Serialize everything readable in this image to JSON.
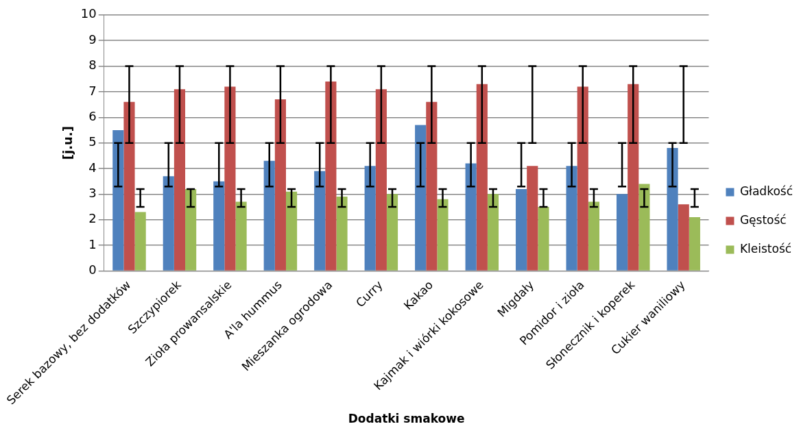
{
  "chart_data": {
    "type": "bar",
    "xlabel": "Dodatki smakowe",
    "ylabel": "[j.u.]",
    "categories": [
      "Serek bazowy, bez dodatków",
      "Szczypiorek",
      "Zioła prowansalskie",
      "A'la hummus",
      "Mieszanka ogrodowa",
      "Curry",
      "Kakao",
      "Kajmak i wiórki kokosowe",
      "Migdały",
      "Pomidor i zioła",
      "Słonecznik i koperek",
      "Cukier waniliowy"
    ],
    "series": [
      {
        "name": "Gładkość",
        "color": "#4f81bd",
        "values": [
          5.5,
          3.7,
          3.5,
          4.3,
          3.9,
          4.1,
          5.7,
          4.2,
          3.2,
          4.1,
          3.0,
          4.8
        ],
        "errors": [
          [
            3.3,
            5
          ],
          [
            3.3,
            5
          ],
          [
            3.3,
            5
          ],
          [
            3.3,
            5
          ],
          [
            3.3,
            5
          ],
          [
            3.3,
            5
          ],
          [
            3.3,
            5
          ],
          [
            3.3,
            5
          ],
          [
            3.3,
            5
          ],
          [
            3.3,
            5
          ],
          [
            3.3,
            5
          ],
          [
            3.3,
            5
          ]
        ]
      },
      {
        "name": "Gęstość",
        "color": "#c0504d",
        "values": [
          6.6,
          7.1,
          7.2,
          6.7,
          7.4,
          7.1,
          6.6,
          7.3,
          4.1,
          7.2,
          7.3,
          2.6
        ],
        "errors": [
          [
            5,
            8
          ],
          [
            5,
            8
          ],
          [
            5,
            8
          ],
          [
            5,
            8
          ],
          [
            5,
            8
          ],
          [
            5,
            8
          ],
          [
            5,
            8
          ],
          [
            5,
            8
          ],
          [
            5,
            8
          ],
          [
            5,
            8
          ],
          [
            5,
            8
          ],
          [
            5,
            8
          ]
        ]
      },
      {
        "name": "Kleistość",
        "color": "#9bbb59",
        "values": [
          2.3,
          3.2,
          2.7,
          3.1,
          2.9,
          3.0,
          2.8,
          3.0,
          2.5,
          2.7,
          3.4,
          2.1
        ],
        "errors": [
          [
            2.5,
            3.2
          ],
          [
            2.5,
            3.2
          ],
          [
            2.5,
            3.2
          ],
          [
            2.5,
            3.2
          ],
          [
            2.5,
            3.2
          ],
          [
            2.5,
            3.2
          ],
          [
            2.5,
            3.2
          ],
          [
            2.5,
            3.2
          ],
          [
            2.5,
            3.2
          ],
          [
            2.5,
            3.2
          ],
          [
            2.5,
            3.2
          ],
          [
            2.5,
            3.2
          ]
        ]
      }
    ],
    "ylim": [
      0,
      10
    ],
    "yticks": [
      0,
      1,
      2,
      3,
      4,
      5,
      6,
      7,
      8,
      9,
      10
    ],
    "grid": "y",
    "legend": "right"
  }
}
